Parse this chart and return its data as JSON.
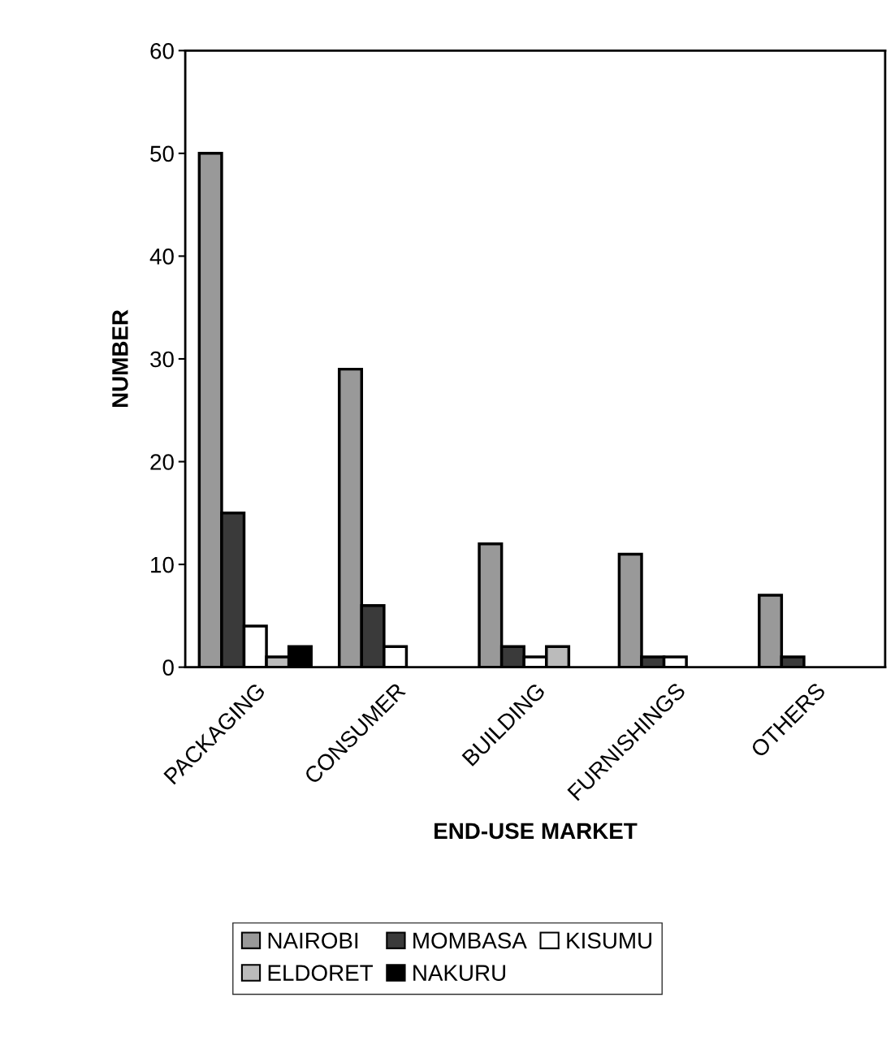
{
  "chart_data": {
    "type": "bar",
    "xlabel": "END-USE MARKET",
    "ylabel": "NUMBER",
    "categories": [
      "PACKAGING",
      "CONSUMER",
      "BUILDING",
      "FURNISHINGS",
      "OTHERS"
    ],
    "series": [
      {
        "name": "NAIROBI",
        "color": "#999999",
        "values": [
          50,
          29,
          12,
          11,
          7
        ]
      },
      {
        "name": "MOMBASA",
        "color": "#3a3a3a",
        "values": [
          15,
          6,
          2,
          1,
          1
        ]
      },
      {
        "name": "KISUMU",
        "color": "#ffffff",
        "values": [
          4,
          2,
          1,
          1,
          0
        ]
      },
      {
        "name": "ELDORET",
        "color": "#bbbbbb",
        "values": [
          1,
          0,
          2,
          0,
          0
        ]
      },
      {
        "name": "NAKURU",
        "color": "#000000",
        "values": [
          2,
          0,
          0,
          0,
          0
        ]
      }
    ],
    "ylim": [
      0,
      60
    ],
    "yticks": [
      0,
      10,
      20,
      30,
      40,
      50,
      60
    ],
    "grid": false,
    "legend": "bottom"
  }
}
